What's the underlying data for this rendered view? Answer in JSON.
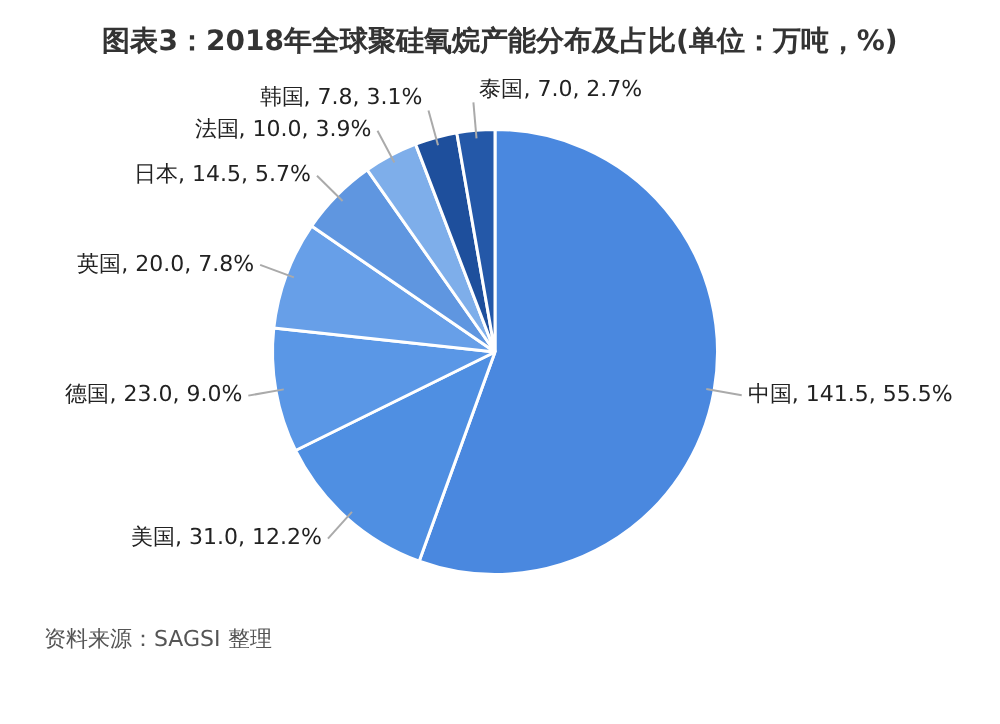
{
  "chart_data": {
    "type": "pie",
    "title": "图表3：2018年全球聚硅氧烷产能分布及占比(单位：万吨，%)",
    "categories": [
      "中国",
      "美国",
      "德国",
      "英国",
      "日本",
      "法国",
      "韩国",
      "泰国"
    ],
    "values": [
      141.5,
      31.0,
      23.0,
      20.0,
      14.5,
      10.0,
      7.8,
      7.0
    ],
    "value_labels": [
      "141.5, 55.5%",
      "31.0, 12.2%",
      "23.0, 9.0%",
      "20.0, 7.8%",
      "14.5, 5.7%",
      "10.0, 3.9%",
      "7.8, 3.1%",
      "7.0, 2.7%"
    ],
    "colors": [
      "#4a88df",
      "#4f8fe2",
      "#5a97e6",
      "#679fe8",
      "#5f96e0",
      "#7eaeea",
      "#1e4f9c",
      "#2458a8"
    ],
    "legend": false,
    "annotations": [
      "资料来源：SAGSI 整理"
    ]
  }
}
